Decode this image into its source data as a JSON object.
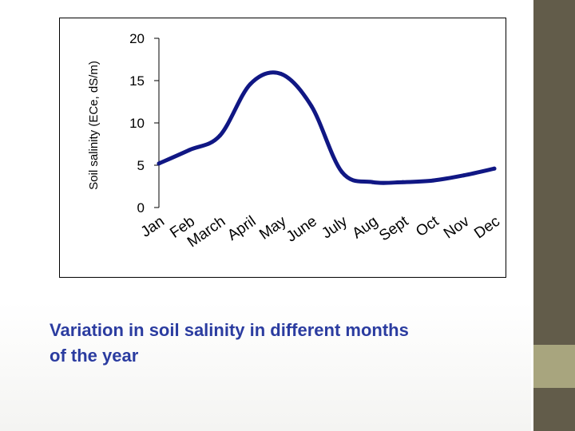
{
  "slide": {
    "caption_line1": "Variation in soil salinity in different months",
    "caption_line2": "of the year",
    "colors": {
      "caption": "#2b3ca0",
      "series": "#101784",
      "band_dark": "#625c4a",
      "band_light": "#a8a57e"
    }
  },
  "chart_data": {
    "type": "line",
    "title": "",
    "xlabel": "",
    "ylabel": "Soil salinity (ECe, dS/m)",
    "ylim": [
      0,
      20
    ],
    "yticks": [
      "0",
      "5",
      "10",
      "15",
      "20"
    ],
    "categories": [
      "Jan",
      "Feb",
      "March",
      "April",
      "May",
      "June",
      "July",
      "Aug",
      "Sept",
      "Oct",
      "Nov",
      "Dec"
    ],
    "series": [
      {
        "name": "Soil salinity",
        "values": [
          5.2,
          6.8,
          8.5,
          14.6,
          15.8,
          12.0,
          4.2,
          3.0,
          3.0,
          3.2,
          3.8,
          4.6
        ]
      }
    ]
  }
}
